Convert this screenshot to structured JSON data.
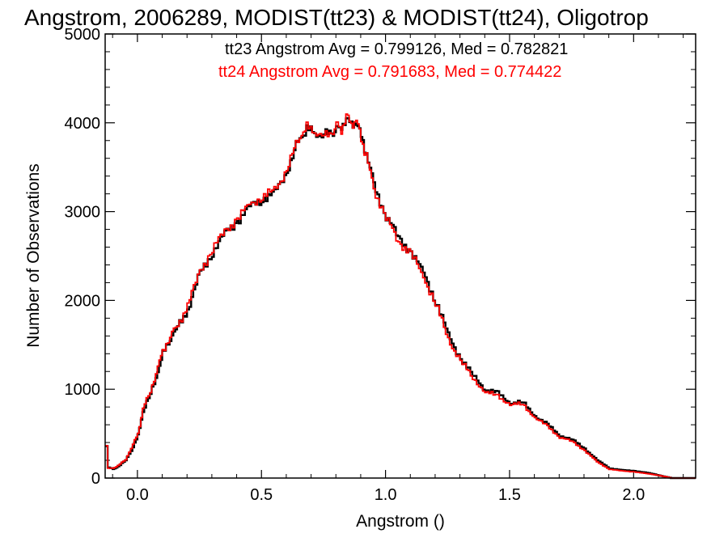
{
  "chart_data": {
    "type": "line",
    "step": true,
    "title": "Angstrom, 2006289, MODIST(tt23) & MODIST(tt24), Oligotrop",
    "xlabel": "Angstrom ()",
    "ylabel": "Number of Observations",
    "xlim": [
      -0.13,
      2.25
    ],
    "ylim": [
      0,
      5000
    ],
    "x_ticks": [
      0.0,
      0.5,
      1.0,
      1.5,
      2.0
    ],
    "x_tick_labels": [
      "0.0",
      "0.5",
      "1.0",
      "1.5",
      "2.0"
    ],
    "y_ticks": [
      0,
      1000,
      2000,
      3000,
      4000,
      5000
    ],
    "y_tick_labels": [
      "0",
      "1000",
      "2000",
      "3000",
      "4000",
      "5000"
    ],
    "grid": false,
    "annotations": [
      {
        "text": "tt23 Angstrom Avg = 0.799126, Med = 0.782821",
        "color": "#000000"
      },
      {
        "text": "tt24 Angstrom Avg = 0.791683, Med = 0.774422",
        "color": "#ff0000"
      }
    ],
    "series": [
      {
        "color": "#000000",
        "x": [
          -0.13,
          -0.12,
          -0.1,
          -0.08,
          -0.05,
          -0.02,
          0.0,
          0.02,
          0.05,
          0.08,
          0.1,
          0.13,
          0.16,
          0.2,
          0.25,
          0.3,
          0.35,
          0.4,
          0.45,
          0.5,
          0.55,
          0.6,
          0.63,
          0.66,
          0.68,
          0.72,
          0.75,
          0.78,
          0.8,
          0.82,
          0.84,
          0.86,
          0.88,
          0.9,
          0.92,
          0.95,
          1.0,
          1.05,
          1.1,
          1.15,
          1.2,
          1.25,
          1.3,
          1.35,
          1.4,
          1.45,
          1.5,
          1.55,
          1.6,
          1.65,
          1.7,
          1.75,
          1.8,
          1.85,
          1.9,
          1.95,
          2.0,
          2.05,
          2.1,
          2.15,
          2.2,
          2.25
        ],
        "y": [
          360,
          120,
          100,
          130,
          200,
          350,
          480,
          750,
          950,
          1200,
          1400,
          1580,
          1700,
          1900,
          2300,
          2550,
          2750,
          2900,
          3050,
          3150,
          3200,
          3450,
          3700,
          3850,
          3930,
          3870,
          3880,
          3860,
          3950,
          3950,
          4050,
          3980,
          4000,
          3850,
          3650,
          3300,
          2950,
          2700,
          2550,
          2300,
          2000,
          1600,
          1350,
          1150,
          1000,
          950,
          850,
          850,
          700,
          600,
          480,
          430,
          330,
          200,
          110,
          90,
          80,
          60,
          30,
          0,
          0,
          0
        ]
      },
      {
        "color": "#ff0000",
        "x": [
          -0.13,
          -0.12,
          -0.1,
          -0.08,
          -0.05,
          -0.02,
          0.0,
          0.02,
          0.05,
          0.08,
          0.1,
          0.13,
          0.16,
          0.2,
          0.25,
          0.3,
          0.35,
          0.4,
          0.45,
          0.5,
          0.55,
          0.6,
          0.63,
          0.66,
          0.68,
          0.72,
          0.75,
          0.78,
          0.8,
          0.82,
          0.84,
          0.86,
          0.88,
          0.9,
          0.92,
          0.95,
          1.0,
          1.05,
          1.1,
          1.15,
          1.2,
          1.25,
          1.3,
          1.35,
          1.4,
          1.45,
          1.5,
          1.55,
          1.6,
          1.65,
          1.7,
          1.75,
          1.8,
          1.85,
          1.9,
          1.95,
          2.0,
          2.05,
          2.1,
          2.15,
          2.2,
          2.25
        ],
        "y": [
          370,
          110,
          110,
          140,
          210,
          380,
          500,
          780,
          980,
          1250,
          1430,
          1600,
          1720,
          1950,
          2330,
          2580,
          2780,
          2920,
          3080,
          3170,
          3230,
          3480,
          3720,
          3880,
          3950,
          3900,
          3850,
          3880,
          3970,
          3930,
          4070,
          3990,
          4020,
          3830,
          3620,
          3260,
          2920,
          2670,
          2520,
          2270,
          1960,
          1560,
          1320,
          1120,
          970,
          920,
          830,
          830,
          680,
          580,
          460,
          410,
          310,
          180,
          100,
          80,
          70,
          50,
          30,
          0,
          0,
          0
        ]
      }
    ]
  }
}
